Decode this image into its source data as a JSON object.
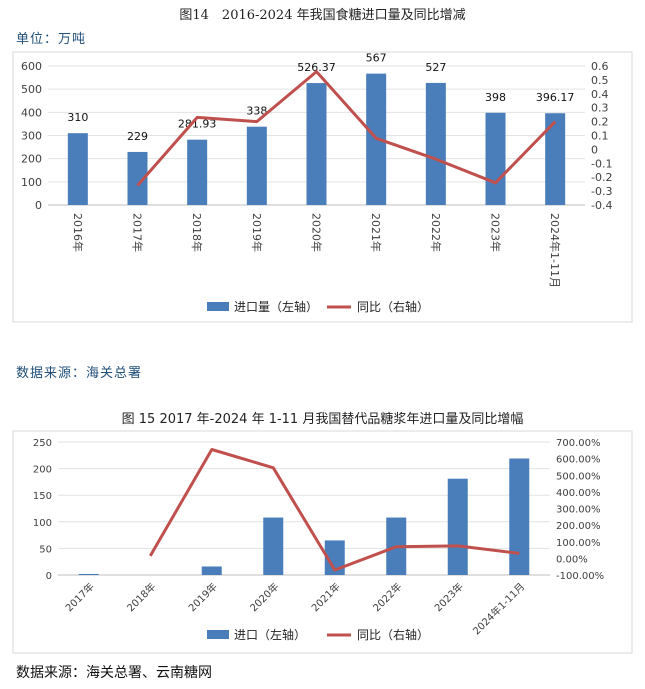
{
  "fig1": {
    "title": "图14　2016-2024 年我国食糖进口量及同比增减",
    "unit": "单位：万吨",
    "source": "数据来源：海关总署"
  },
  "fig2": {
    "title": "图 15 2017 年-2024 年 1-11 月我国替代品糖浆年进口量及同比增幅",
    "source": "数据来源：海关总署、云南糖网"
  },
  "chart_data": [
    {
      "type": "bar",
      "categories": [
        "2016年",
        "2017年",
        "2018年",
        "2019年",
        "2020年",
        "2021年",
        "2022年",
        "2023年",
        "2024年1-11月"
      ],
      "series": [
        {
          "name": "进口量（左轴）",
          "type": "bar",
          "axis": "left",
          "color": "#4a7ebb",
          "values": [
            310,
            229,
            281.93,
            338,
            526.37,
            567,
            527,
            398,
            396.17
          ]
        },
        {
          "name": "同比（右轴）",
          "type": "line",
          "axis": "right",
          "color": "#c0504d",
          "values": [
            null,
            -0.26,
            0.23,
            0.2,
            0.56,
            0.08,
            -0.07,
            -0.24,
            0.2
          ]
        }
      ],
      "data_labels": [
        "310",
        "229",
        "281.93",
        "338",
        "526.37",
        "567",
        "527",
        "398",
        "396.17"
      ],
      "left_axis": {
        "ylim": [
          0,
          600
        ],
        "ticks": [
          "0",
          "100",
          "200",
          "300",
          "400",
          "500",
          "600"
        ]
      },
      "right_axis": {
        "ylim": [
          -0.4,
          0.6
        ],
        "ticks": [
          "0.6",
          "0.5",
          "0.4",
          "0.3",
          "0.2",
          "0.1",
          "0",
          "-0.1",
          "-0.2",
          "-0.3",
          "-0.4"
        ]
      },
      "legend": "bottom",
      "grid": true
    },
    {
      "type": "bar",
      "categories": [
        "2017年",
        "2018年",
        "2019年",
        "2020年",
        "2021年",
        "2022年",
        "2023年",
        "2024年1-11月"
      ],
      "series": [
        {
          "name": "进口（左轴）",
          "type": "bar",
          "axis": "left",
          "color": "#4a7ebb",
          "values": [
            2,
            0,
            16,
            108,
            65,
            108,
            181,
            219
          ]
        },
        {
          "name": "同比（右轴）",
          "type": "line",
          "axis": "right",
          "color": "#c0504d",
          "values": [
            null,
            15,
            655,
            545,
            -70,
            70,
            75,
            30
          ]
        }
      ],
      "left_axis": {
        "ylim": [
          0,
          250
        ],
        "ticks": [
          "0",
          "50",
          "100",
          "150",
          "200",
          "250"
        ]
      },
      "right_axis": {
        "ylim": [
          -100,
          700
        ],
        "ticks": [
          "700.00%",
          "600.00%",
          "500.00%",
          "400.00%",
          "300.00%",
          "200.00%",
          "100.00%",
          "0.00%",
          "-100.00%"
        ]
      },
      "legend": "bottom",
      "grid": true
    }
  ]
}
